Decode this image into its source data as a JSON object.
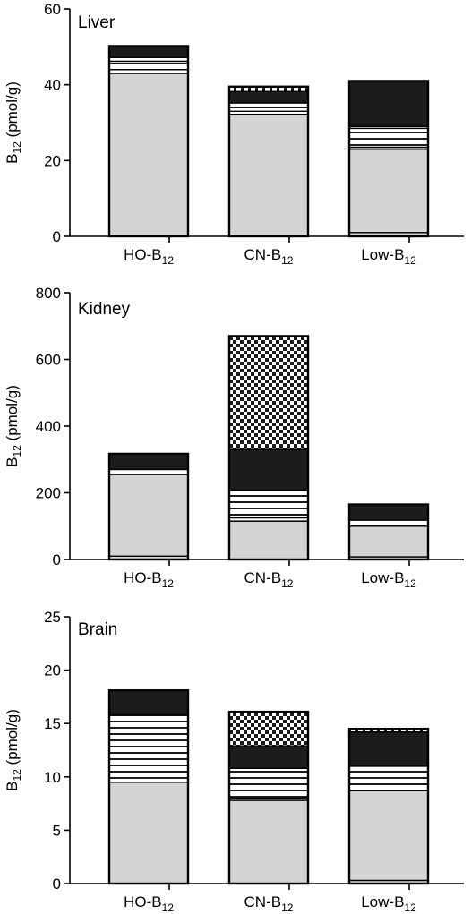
{
  "colors": {
    "basal": "#d4d4d4",
    "black": "#1c1c1c",
    "white": "#ffffff",
    "outline": "#000000",
    "checker_dark": "#1c1c1c"
  },
  "legend_note": "Stacked segments are distinguished only by fill pattern; no legend is printed.",
  "chart_data": [
    {
      "type": "bar",
      "stacked": true,
      "title": "Liver",
      "ylabel": "B12 (pmol/g)",
      "ylabel_parts": {
        "main": "B",
        "sub": "12",
        "rest": " (pmol/g)"
      },
      "ylim": [
        0,
        60
      ],
      "yticks": [
        0,
        20,
        40,
        60
      ],
      "categories": [
        "HO-B12",
        "CN-B12",
        "Low-B12"
      ],
      "category_parts": [
        {
          "main": "HO-B",
          "sub": "12"
        },
        {
          "main": "CN-B",
          "sub": "12"
        },
        {
          "main": "Low-B",
          "sub": "12"
        }
      ],
      "stacks": [
        [
          {
            "fill": "gray",
            "value": 43
          },
          {
            "fill": "white",
            "value": 1
          },
          {
            "fill": "stripes",
            "value": 2.2
          },
          {
            "fill": "white",
            "value": 1
          },
          {
            "fill": "black",
            "value": 3
          }
        ],
        [
          {
            "fill": "gray",
            "value": 32.2
          },
          {
            "fill": "white",
            "value": 0.8
          },
          {
            "fill": "stripes",
            "value": 2.2
          },
          {
            "fill": "black",
            "value": 3
          },
          {
            "fill": "dashed",
            "value": 1.3
          }
        ],
        [
          {
            "fill": "gray",
            "value": 1
          },
          {
            "fill": "gray",
            "value": 22
          },
          {
            "fill": "white",
            "value": 0.5
          },
          {
            "fill": "stripes",
            "value": 5
          },
          {
            "fill": "white",
            "value": 0.5
          },
          {
            "fill": "black",
            "value": 12
          }
        ]
      ]
    },
    {
      "type": "bar",
      "stacked": true,
      "title": "Kidney",
      "ylabel": "B12 (pmol/g)",
      "ylabel_parts": {
        "main": "B",
        "sub": "12",
        "rest": " (pmol/g)"
      },
      "ylim": [
        0,
        800
      ],
      "yticks": [
        0,
        200,
        400,
        600,
        800
      ],
      "categories": [
        "HO-B12",
        "CN-B12",
        "Low-B12"
      ],
      "category_parts": [
        {
          "main": "HO-B",
          "sub": "12"
        },
        {
          "main": "CN-B",
          "sub": "12"
        },
        {
          "main": "Low-B",
          "sub": "12"
        }
      ],
      "stacks": [
        [
          {
            "fill": "gray",
            "value": 10
          },
          {
            "fill": "gray",
            "value": 245
          },
          {
            "fill": "white",
            "value": 15
          },
          {
            "fill": "black",
            "value": 47
          }
        ],
        [
          {
            "fill": "gray",
            "value": 115
          },
          {
            "fill": "white",
            "value": 10
          },
          {
            "fill": "stripes",
            "value": 83
          },
          {
            "fill": "black",
            "value": 122
          },
          {
            "fill": "checker",
            "value": 340
          }
        ],
        [
          {
            "fill": "gray",
            "value": 8
          },
          {
            "fill": "gray",
            "value": 92
          },
          {
            "fill": "white",
            "value": 18
          },
          {
            "fill": "black",
            "value": 47
          }
        ]
      ]
    },
    {
      "type": "bar",
      "stacked": true,
      "title": "Brain",
      "ylabel": "B12 (pmol/g)",
      "ylabel_parts": {
        "main": "B",
        "sub": "12",
        "rest": " (pmol/g)"
      },
      "ylim": [
        0,
        25
      ],
      "yticks": [
        0,
        5,
        10,
        15,
        20,
        25
      ],
      "categories": [
        "HO-B12",
        "CN-B12",
        "Low-B12"
      ],
      "category_parts": [
        {
          "main": "HO-B",
          "sub": "12"
        },
        {
          "main": "CN-B",
          "sub": "12"
        },
        {
          "main": "Low-B",
          "sub": "12"
        }
      ],
      "stacks": [
        [
          {
            "fill": "gray",
            "value": 9.5
          },
          {
            "fill": "stripes",
            "value": 6.3
          },
          {
            "fill": "black",
            "value": 2.3
          }
        ],
        [
          {
            "fill": "gray",
            "value": 7.8
          },
          {
            "fill": "white",
            "value": 0.2
          },
          {
            "fill": "stripes",
            "value": 2.8
          },
          {
            "fill": "black",
            "value": 2.1
          },
          {
            "fill": "checker",
            "value": 3.2
          }
        ],
        [
          {
            "fill": "gray",
            "value": 0.3
          },
          {
            "fill": "gray",
            "value": 8.4
          },
          {
            "fill": "stripes",
            "value": 2.3
          },
          {
            "fill": "black",
            "value": 3.2
          },
          {
            "fill": "dashed",
            "value": 0.3
          }
        ]
      ]
    }
  ]
}
